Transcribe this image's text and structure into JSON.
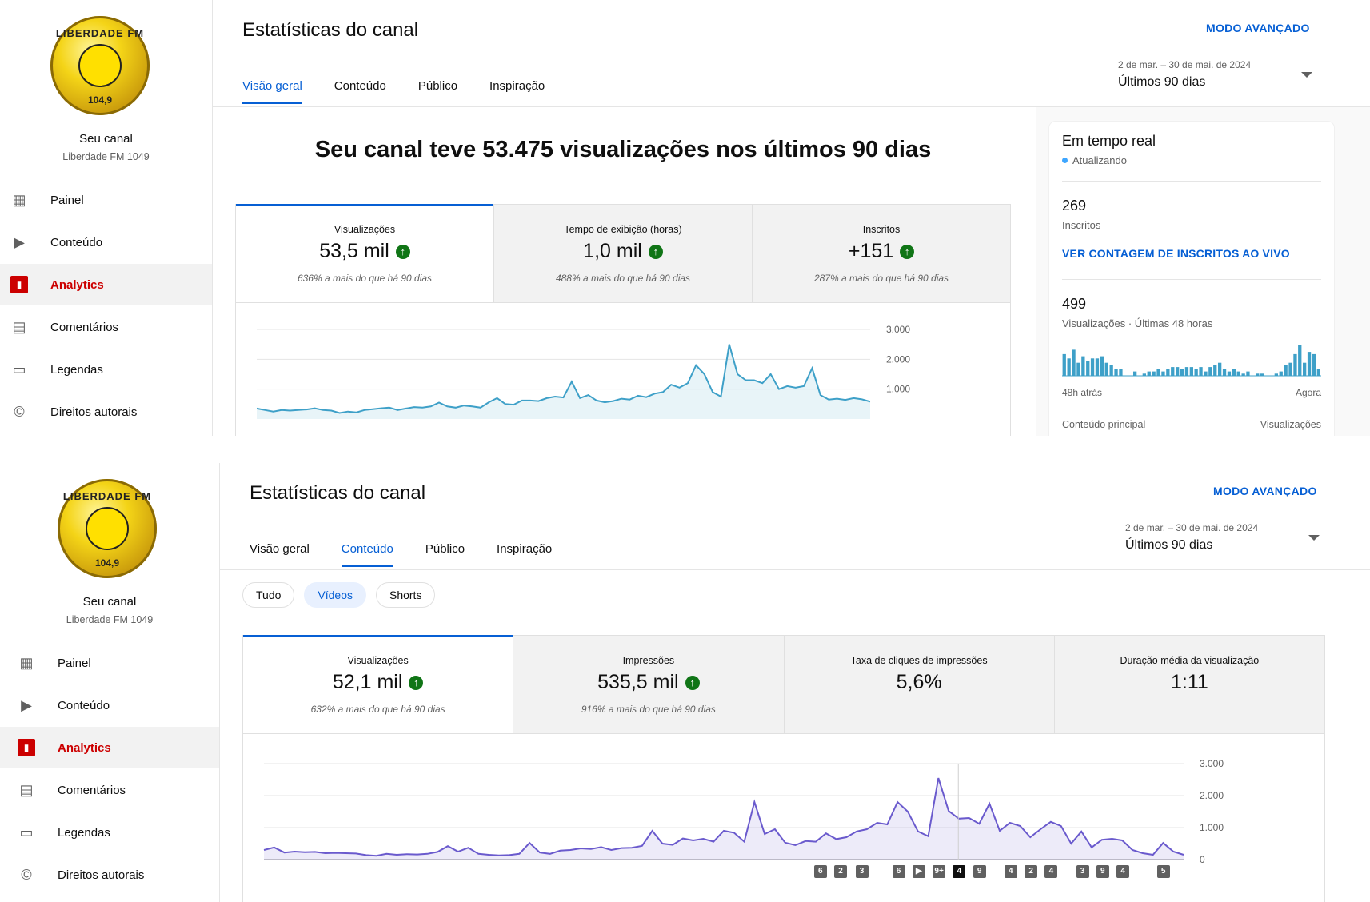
{
  "channel": {
    "label": "Seu canal",
    "name": "Liberdade FM 1049",
    "logo_top": "LIBERDADE FM",
    "logo_bottom": "104,9"
  },
  "nav": [
    {
      "label": "Painel",
      "icon": "dashboard-icon"
    },
    {
      "label": "Conteúdo",
      "icon": "content-icon"
    },
    {
      "label": "Analytics",
      "icon": "analytics-icon",
      "active": true
    },
    {
      "label": "Comentários",
      "icon": "comments-icon"
    },
    {
      "label": "Legendas",
      "icon": "subtitles-icon"
    },
    {
      "label": "Direitos autorais",
      "icon": "copyright-icon"
    }
  ],
  "page_title": "Estatísticas do canal",
  "advanced": "MODO AVANÇADO",
  "tabs": [
    "Visão geral",
    "Conteúdo",
    "Público",
    "Inspiração"
  ],
  "range": {
    "dates": "2 de mar. – 30 de mai. de 2024",
    "label": "Últimos 90 dias"
  },
  "top": {
    "headline": "Seu canal teve 53.475 visualizações nos últimos 90 dias",
    "active_tab": 0,
    "cards": [
      {
        "title": "Visualizações",
        "value": "53,5 mil",
        "up": true,
        "compare": "636% a mais do que há 90 dias"
      },
      {
        "title": "Tempo de exibição (horas)",
        "value": "1,0 mil",
        "up": true,
        "compare": "488% a mais do que há 90 dias"
      },
      {
        "title": "Inscritos",
        "value": "+151",
        "up": true,
        "compare": "287% a mais do que há 90 dias"
      }
    ],
    "realtime": {
      "title": "Em tempo real",
      "status": "Atualizando",
      "subs": "269",
      "subs_label": "Inscritos",
      "live_link": "VER CONTAGEM DE INSCRITOS AO VIVO",
      "views": "499",
      "views_label": "Visualizações · Últimas 48 horas",
      "from": "48h atrás",
      "to": "Agora",
      "col1": "Conteúdo principal",
      "col2": "Visualizações",
      "bars": [
        10,
        8,
        12,
        6,
        9,
        7,
        8,
        8,
        9,
        6,
        5,
        3,
        3,
        0,
        0,
        2,
        0,
        1,
        2,
        2,
        3,
        2,
        3,
        4,
        4,
        3,
        4,
        4,
        3,
        4,
        2,
        4,
        5,
        6,
        3,
        2,
        3,
        2,
        1,
        2,
        0,
        1,
        1,
        0,
        0,
        1,
        2,
        5,
        6,
        10,
        14,
        6,
        11,
        10,
        3
      ]
    },
    "chart_data": {
      "type": "line",
      "yticks": [
        "3.000",
        "2.000",
        "1.000"
      ],
      "ylim": [
        0,
        3000
      ],
      "values": [
        350,
        300,
        250,
        300,
        280,
        300,
        320,
        360,
        300,
        280,
        200,
        250,
        220,
        300,
        330,
        360,
        380,
        300,
        350,
        400,
        380,
        420,
        550,
        420,
        380,
        450,
        420,
        380,
        560,
        700,
        500,
        480,
        620,
        620,
        600,
        700,
        750,
        720,
        1250,
        700,
        800,
        620,
        560,
        600,
        680,
        650,
        780,
        730,
        850,
        900,
        1150,
        1050,
        1200,
        1800,
        1500,
        900,
        750,
        2500,
        1500,
        1300,
        1300,
        1200,
        1500,
        1000,
        1100,
        1050,
        1100,
        1700,
        800,
        650,
        680,
        640,
        700,
        660,
        580
      ]
    }
  },
  "bottom": {
    "active_tab": 1,
    "chips": [
      "Tudo",
      "Vídeos",
      "Shorts"
    ],
    "active_chip": 1,
    "cards": [
      {
        "title": "Visualizações",
        "value": "52,1 mil",
        "up": true,
        "compare": "632% a mais do que há 90 dias"
      },
      {
        "title": "Impressões",
        "value": "535,5 mil",
        "up": true,
        "compare": "916% a mais do que há 90 dias"
      },
      {
        "title": "Taxa de cliques de impressões",
        "value": "5,6%",
        "up": false,
        "compare": ""
      },
      {
        "title": "Duração média da visualização",
        "value": "1:11",
        "up": false,
        "compare": ""
      }
    ],
    "chart_data": {
      "type": "area",
      "yticks": [
        "3.000",
        "2.000",
        "1.000",
        "0"
      ],
      "ylim": [
        0,
        3000
      ],
      "values": [
        300,
        380,
        220,
        250,
        230,
        240,
        200,
        210,
        200,
        190,
        140,
        120,
        180,
        150,
        170,
        160,
        180,
        240,
        420,
        250,
        370,
        180,
        150,
        130,
        140,
        180,
        520,
        220,
        180,
        280,
        300,
        350,
        330,
        390,
        300,
        360,
        370,
        430,
        900,
        500,
        460,
        660,
        600,
        650,
        560,
        900,
        840,
        560,
        1800,
        800,
        950,
        530,
        450,
        580,
        560,
        820,
        640,
        700,
        880,
        950,
        1150,
        1100,
        1800,
        1500,
        880,
        730,
        2550,
        1520,
        1280,
        1300,
        1120,
        1750,
        900,
        1150,
        1050,
        700,
        950,
        1180,
        1050,
        500,
        880,
        380,
        620,
        650,
        600,
        300,
        200,
        150,
        520,
        250,
        150
      ],
      "markers": [
        {
          "label": "6",
          "pos": 0.605
        },
        {
          "label": "2",
          "pos": 0.627
        },
        {
          "label": "3",
          "pos": 0.65
        },
        {
          "label": "6",
          "pos": 0.69
        },
        {
          "label": "▶",
          "pos": 0.712
        },
        {
          "label": "9+",
          "pos": 0.734
        },
        {
          "label": "4",
          "pos": 0.756,
          "dark": true
        },
        {
          "label": "9",
          "pos": 0.778
        },
        {
          "label": "4",
          "pos": 0.812
        },
        {
          "label": "2",
          "pos": 0.834
        },
        {
          "label": "4",
          "pos": 0.856
        },
        {
          "label": "3",
          "pos": 0.89
        },
        {
          "label": "9",
          "pos": 0.912
        },
        {
          "label": "4",
          "pos": 0.934
        },
        {
          "label": "5",
          "pos": 0.978
        }
      ]
    }
  }
}
